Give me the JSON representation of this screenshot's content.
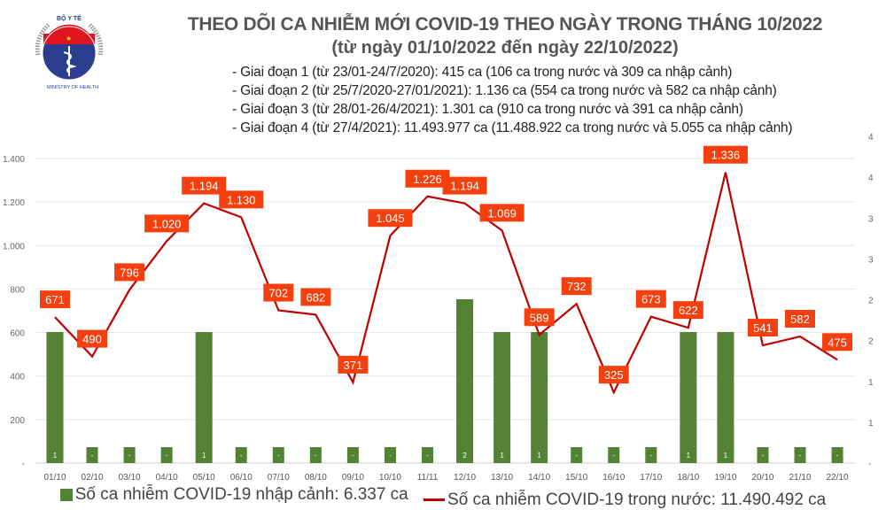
{
  "header": {
    "logo_text": [
      "BỘ Y TẾ",
      "MINISTRY OF HEALTH"
    ],
    "title": "THEO DÕI CA NHIỄM MỚI COVID-19 THEO NGÀY TRONG THÁNG 10/2022",
    "subtitle": "(từ ngày 01/10/2022 đến ngày 22/10/2022)",
    "phases": [
      "- Giai đoạn 1 (từ 23/01-24/7/2020): 415 ca (106 ca trong nước và 309 ca nhập cảnh)",
      "- Giai đoạn 2 (từ 25/7/2020-27/01/2021): 1.136 ca (554 ca trong nước và 582 ca nhập cảnh)",
      "- Giai đoạn 3 (từ 28/01-26/4/2021): 1.301 ca (910 ca trong nước và 391 ca nhập cảnh)",
      "- Giai đoạn 4 (từ 27/4/2021): 11.493.977 ca (11.488.922 ca trong nước và 5.055 ca nhập cảnh)"
    ]
  },
  "chart_data": {
    "type": "bar+line",
    "categories": [
      "01/10",
      "02/10",
      "03/10",
      "04/10",
      "05/10",
      "06/10",
      "07/10",
      "08/10",
      "09/10",
      "10/10",
      "11/11",
      "12/10",
      "13/10",
      "14/10",
      "15/10",
      "16/10",
      "17/10",
      "18/10",
      "19/10",
      "20/10",
      "21/10",
      "22/10"
    ],
    "left_axis": {
      "ylim": [
        0,
        1400
      ],
      "ticks": [
        0,
        200,
        400,
        600,
        800,
        1000,
        1200,
        1400
      ],
      "tick_labels": [
        "-",
        "200",
        "400",
        "600",
        "800",
        "1.000",
        "1.200",
        "1.400"
      ]
    },
    "right_axis": {
      "ylim": [
        0,
        4
      ],
      "tick_labels": [
        "-",
        "1",
        "1",
        "2",
        "2",
        "3",
        "3",
        "4",
        "4"
      ]
    },
    "grid": true,
    "legend_placement": "bottom",
    "series": [
      {
        "name": "Số ca nhiễm COVID-19 nhập cảnh: 6.337 ca",
        "type": "bar",
        "axis": "right",
        "color": "#548235",
        "values": [
          1,
          0,
          0,
          0,
          1,
          0,
          0,
          0,
          0,
          0,
          0,
          2,
          1,
          1,
          0,
          0,
          0,
          1,
          1,
          0,
          0,
          0
        ],
        "labels": [
          "1",
          "-",
          "-",
          "-",
          "1",
          "-",
          "-",
          "-",
          "-",
          "-",
          "-",
          "2",
          "1",
          "1",
          "-",
          "-",
          "-",
          "1",
          "1",
          "-",
          "-",
          "-"
        ]
      },
      {
        "name": "Số ca nhiễm COVID-19 trong nước: 11.490.492 ca",
        "type": "line",
        "axis": "left",
        "color": "#c00000",
        "label_color": "#f4400f",
        "values": [
          671,
          490,
          796,
          1020,
          1194,
          1130,
          702,
          682,
          371,
          1045,
          1226,
          1194,
          1069,
          589,
          732,
          325,
          673,
          622,
          1336,
          541,
          582,
          475
        ],
        "labels": [
          "671",
          "490",
          "796",
          "1.020",
          "1.194",
          "1.130",
          "702",
          "682",
          "371",
          "1.045",
          "1.226",
          "1.194",
          "1.069",
          "589",
          "732",
          "325",
          "673",
          "622",
          "1.336",
          "541",
          "582",
          "475"
        ]
      }
    ]
  }
}
